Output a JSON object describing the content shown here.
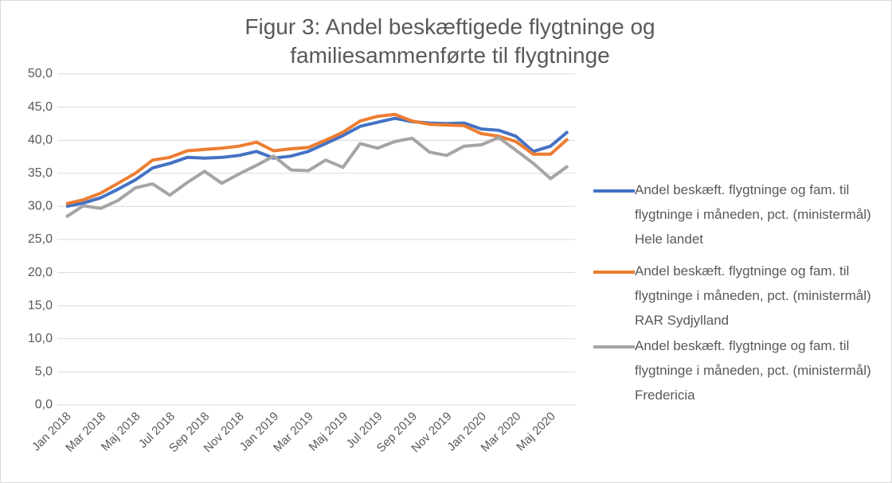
{
  "chart_data": {
    "type": "line",
    "title": "Figur 3: Andel beskæftigede flygtninge og familiesammenførte til flygtninge",
    "categories": [
      "Jan 2018",
      null,
      "Mar 2018",
      null,
      "Maj 2018",
      null,
      "Jul 2018",
      null,
      "Sep 2018",
      null,
      "Nov 2018",
      null,
      "Jan 2019",
      null,
      "Mar 2019",
      null,
      "Maj 2019",
      null,
      "Jul 2019",
      null,
      "Sep 2019",
      null,
      "Nov 2019",
      null,
      "Jan 2020",
      null,
      "Mar 2020",
      null,
      "Maj 2020",
      null
    ],
    "series": [
      {
        "name": "Andel beskæft. flygtninge og fam. til flygtninge i måneden, pct. (ministermål) Hele landet",
        "color": "#4472c4",
        "values": [
          30.0,
          30.5,
          31.3,
          32.6,
          34.0,
          35.8,
          36.5,
          37.4,
          37.3,
          37.4,
          37.7,
          38.3,
          37.3,
          37.6,
          38.3,
          39.5,
          40.7,
          42.1,
          42.7,
          43.3,
          42.8,
          42.6,
          42.5,
          42.6,
          41.7,
          41.5,
          40.6,
          38.3,
          39.1,
          41.3
        ]
      },
      {
        "name": "Andel beskæft. flygtninge og fam. til flygtninge i måneden, pct. (ministermål) RAR Sydjylland",
        "color": "#ed7d31",
        "values": [
          30.4,
          31.0,
          32.0,
          33.5,
          35.0,
          37.0,
          37.4,
          38.4,
          38.6,
          38.8,
          39.1,
          39.7,
          38.4,
          38.7,
          38.9,
          40.0,
          41.2,
          42.9,
          43.6,
          43.9,
          42.9,
          42.4,
          42.3,
          42.2,
          41.0,
          40.6,
          39.8,
          37.9,
          37.9,
          40.2
        ]
      },
      {
        "name": "Andel beskæft. flygtninge og fam. til flygtninge i måneden, pct. (ministermål) Fredericia",
        "color": "#a5a5a5",
        "values": [
          28.4,
          30.1,
          29.7,
          30.9,
          32.8,
          33.4,
          31.7,
          33.6,
          35.3,
          33.5,
          34.9,
          36.2,
          37.6,
          35.5,
          35.4,
          37.0,
          35.9,
          39.5,
          38.8,
          39.8,
          40.3,
          38.2,
          37.7,
          39.1,
          39.3,
          40.4,
          38.5,
          36.5,
          34.2,
          36.1
        ]
      }
    ],
    "ylim": [
      0,
      50
    ],
    "yticks": [
      {
        "value": 0,
        "label": "0,0"
      },
      {
        "value": 5,
        "label": "5,0"
      },
      {
        "value": 10,
        "label": "10,0"
      },
      {
        "value": 15,
        "label": "15,0"
      },
      {
        "value": 20,
        "label": "20,0"
      },
      {
        "value": 25,
        "label": "25,0"
      },
      {
        "value": 30,
        "label": "30,0"
      },
      {
        "value": 35,
        "label": "35,0"
      },
      {
        "value": 40,
        "label": "40,0"
      },
      {
        "value": 45,
        "label": "45,0"
      },
      {
        "value": 50,
        "label": "50,0"
      }
    ],
    "grid": true,
    "legend": "right"
  }
}
